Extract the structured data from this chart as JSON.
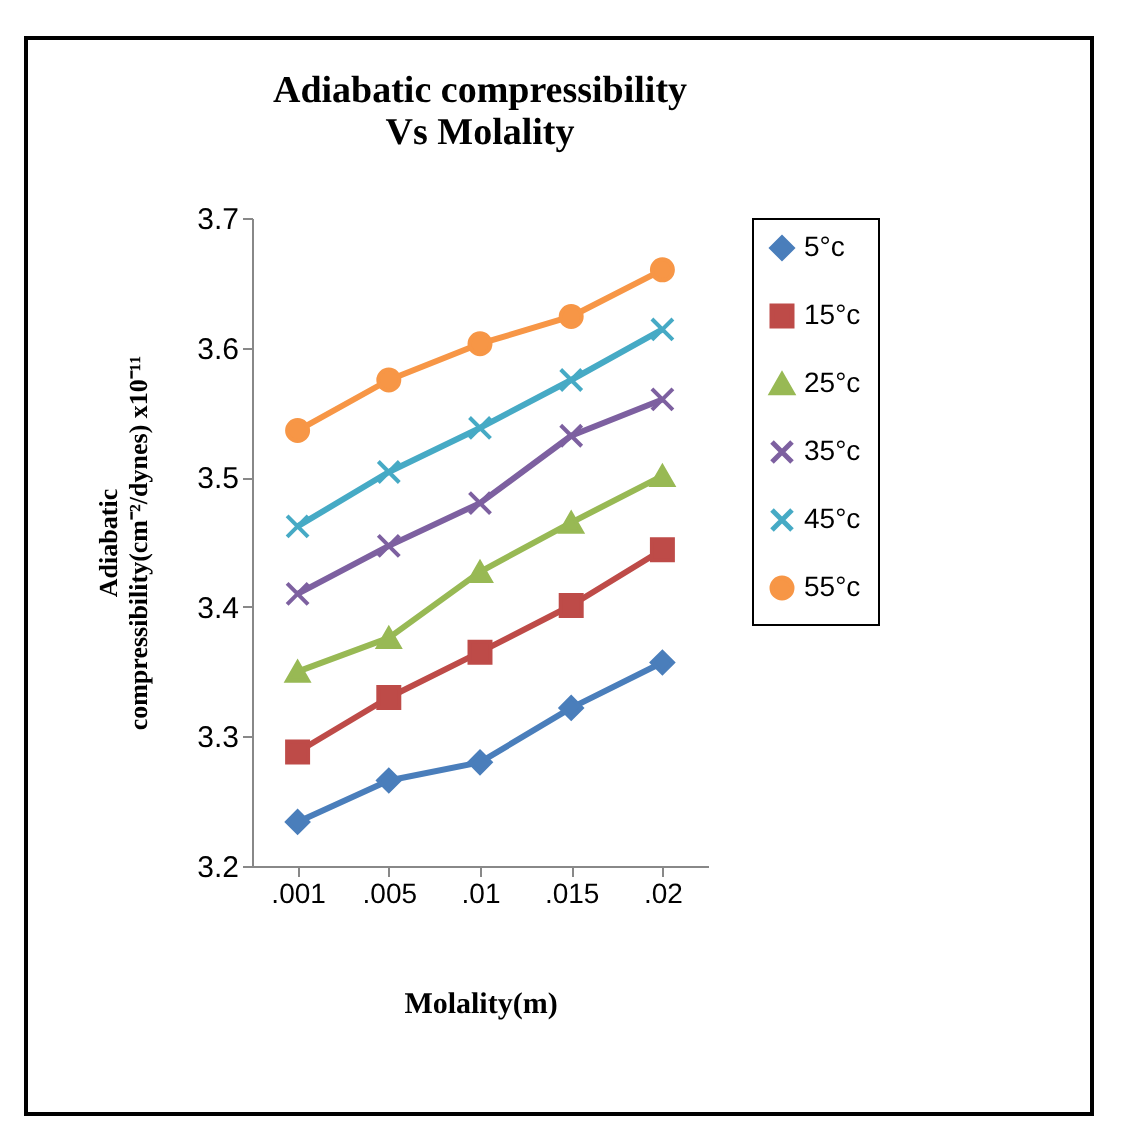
{
  "chart_data": {
    "type": "line",
    "title": "Adiabatic compressibility\nVs Molality",
    "xlabel": "Molality(m)",
    "ylabel": "Adiabatic\ncompressibility(cm⁻²/dynes) x10⁻¹¹",
    "categories": [
      ".001",
      ".005",
      ".01",
      ".015",
      ".02"
    ],
    "series": [
      {
        "name": "5°c",
        "color": "#4a7ebb",
        "marker": "diamond",
        "values": [
          3.234,
          3.266,
          3.28,
          3.322,
          3.357
        ]
      },
      {
        "name": "15°c",
        "color": "#be4b48",
        "marker": "square",
        "values": [
          3.288,
          3.33,
          3.365,
          3.401,
          3.444
        ]
      },
      {
        "name": "25°c",
        "color": "#98b954",
        "marker": "triangle",
        "values": [
          3.35,
          3.376,
          3.427,
          3.465,
          3.501
        ]
      },
      {
        "name": "35°c",
        "color": "#7d60a0",
        "marker": "cross",
        "values": [
          3.41,
          3.447,
          3.48,
          3.532,
          3.56
        ]
      },
      {
        "name": "45°c",
        "color": "#46aac5",
        "marker": "cross",
        "values": [
          3.462,
          3.504,
          3.538,
          3.575,
          3.614
        ]
      },
      {
        "name": "55°c",
        "color": "#f79646",
        "marker": "circle",
        "values": [
          3.536,
          3.575,
          3.603,
          3.624,
          3.66
        ]
      }
    ],
    "ylim": [
      3.2,
      3.7
    ],
    "yticks": [
      3.2,
      3.3,
      3.4,
      3.5,
      3.6,
      3.7
    ],
    "grid": false,
    "legend": "right",
    "line_style": "solid"
  }
}
